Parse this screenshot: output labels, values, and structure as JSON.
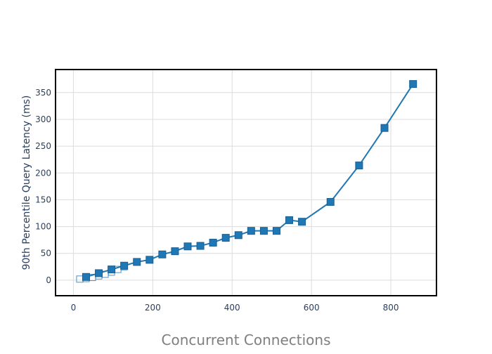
{
  "chart_data": {
    "type": "line",
    "title": "",
    "xlabel": "Concurrent Connections",
    "ylabel": "90th Percentile Query Latency (ms)",
    "xlim": [
      -45,
      915
    ],
    "ylim": [
      -29,
      393
    ],
    "x_ticks": [
      0,
      200,
      400,
      600,
      800
    ],
    "y_ticks": [
      0,
      50,
      100,
      150,
      200,
      250,
      300,
      350
    ],
    "grid": true,
    "legend": "none",
    "series": [
      {
        "marker": "open-square",
        "line": false,
        "color": "#1f77b4",
        "x": [
          16,
          32,
          48,
          64,
          80,
          96,
          112,
          128
        ],
        "y": [
          2,
          3,
          5,
          8,
          11,
          15,
          20,
          25
        ]
      },
      {
        "marker": "filled-square",
        "line": true,
        "color": "#1f77b4",
        "x": [
          32,
          64,
          96,
          128,
          160,
          192,
          224,
          256,
          288,
          320,
          352,
          384,
          416,
          448,
          480,
          512,
          544,
          576,
          648,
          720,
          784,
          856
        ],
        "y": [
          6,
          13,
          20,
          27,
          34,
          38,
          48,
          54,
          63,
          64,
          70,
          79,
          84,
          92,
          92,
          92,
          112,
          109,
          146,
          214,
          284,
          366
        ]
      }
    ]
  }
}
